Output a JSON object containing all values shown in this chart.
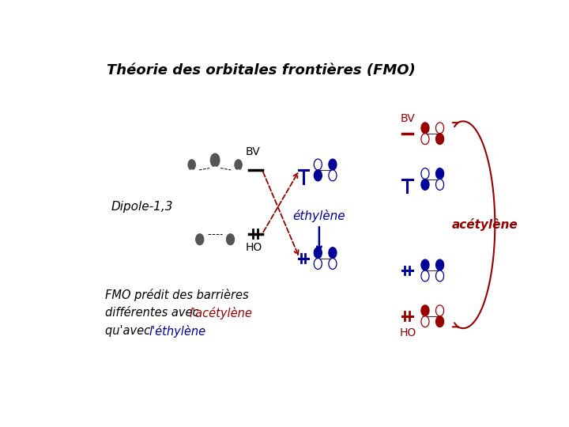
{
  "title": "Théorie des orbitales frontières (FMO)",
  "bg_color": "#ffffff",
  "dipole_label": "Dipole-1,3",
  "dipole_bv_label": "BV",
  "dipole_ho_label": "HO",
  "ethylene_label": "éthylène",
  "acetylene_label": "acétylène",
  "acetylene_bv_label": "BV",
  "acetylene_ho_label": "HO",
  "fmo_line1": "FMO prédit des barrières",
  "fmo_line2a": "différentes avec ",
  "fmo_line2b": "l'acétylène",
  "fmo_line3a": "qu'avec ",
  "fmo_line3b": "l'éthylène",
  "red": "#990000",
  "blue": "#000099",
  "dark_red": "#880000"
}
